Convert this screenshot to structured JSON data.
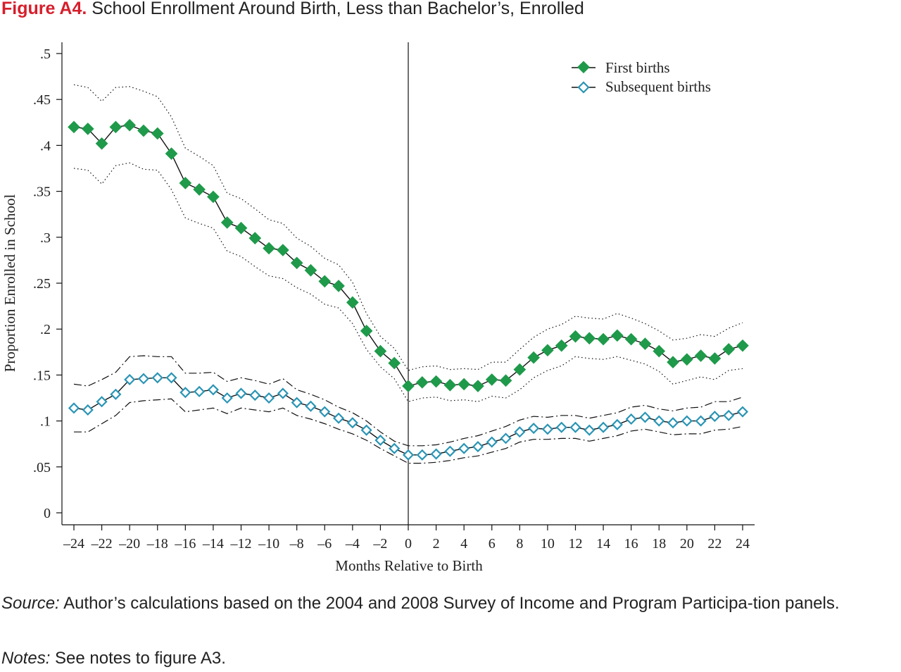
{
  "figure": {
    "label": "Figure A4.",
    "title": "School Enrollment Around Birth, Less than Bachelor’s, Enrolled"
  },
  "captions": {
    "source_lead": "Source:",
    "source_text": "Author’s calculations based on the 2004 and 2008 Survey of Income and Program Participa-tion panels.",
    "notes_lead": "Notes:",
    "notes_text": "See notes to figure A3."
  },
  "colors": {
    "first_births": "#1e9a4a",
    "subsequent_births": "#2a95b5",
    "line": "#111111"
  },
  "chart_data": {
    "type": "line",
    "xlabel": "Months Relative to Birth",
    "ylabel": "Proportion Enrolled in School",
    "xlim": [
      -24,
      24
    ],
    "ylim": [
      0,
      0.5
    ],
    "xticks": [
      -24,
      -22,
      -20,
      -18,
      -16,
      -14,
      -12,
      -10,
      -8,
      -6,
      -4,
      -2,
      0,
      2,
      4,
      6,
      8,
      10,
      12,
      14,
      16,
      18,
      20,
      22,
      24
    ],
    "xtick_labels": [
      "–24",
      "–22",
      "–20",
      "–18",
      "–16",
      "–14",
      "–12",
      "–10",
      "–8",
      "–6",
      "–4",
      "–2",
      "0",
      "2",
      "4",
      "6",
      "8",
      "10",
      "12",
      "14",
      "16",
      "18",
      "20",
      "22",
      "24"
    ],
    "yticks": [
      0,
      0.05,
      0.1,
      0.15,
      0.2,
      0.25,
      0.3,
      0.35,
      0.4,
      0.45,
      0.5
    ],
    "ytick_labels": [
      "0",
      ".05",
      ".1",
      ".15",
      ".2",
      ".25",
      ".3",
      ".35",
      ".4",
      ".45",
      ".5"
    ],
    "vline_x": 0,
    "grid": false,
    "legend_position": "top-right",
    "x": [
      -24,
      -23,
      -22,
      -21,
      -20,
      -19,
      -18,
      -17,
      -16,
      -15,
      -14,
      -13,
      -12,
      -11,
      -10,
      -9,
      -8,
      -7,
      -6,
      -5,
      -4,
      -3,
      -2,
      -1,
      0,
      1,
      2,
      3,
      4,
      5,
      6,
      7,
      8,
      9,
      10,
      11,
      12,
      13,
      14,
      15,
      16,
      17,
      18,
      19,
      20,
      21,
      22,
      23,
      24
    ],
    "series": [
      {
        "name": "First births",
        "marker": "filled-diamond",
        "values": [
          0.42,
          0.418,
          0.402,
          0.42,
          0.422,
          0.416,
          0.413,
          0.391,
          0.359,
          0.352,
          0.344,
          0.316,
          0.31,
          0.299,
          0.288,
          0.286,
          0.272,
          0.264,
          0.252,
          0.247,
          0.229,
          0.198,
          0.176,
          0.163,
          0.138,
          0.142,
          0.143,
          0.139,
          0.14,
          0.138,
          0.145,
          0.144,
          0.156,
          0.169,
          0.177,
          0.182,
          0.192,
          0.19,
          0.189,
          0.193,
          0.189,
          0.184,
          0.176,
          0.164,
          0.167,
          0.171,
          0.168,
          0.178,
          0.182
        ],
        "ci_upper": [
          0.466,
          0.463,
          0.448,
          0.463,
          0.464,
          0.459,
          0.453,
          0.431,
          0.397,
          0.388,
          0.378,
          0.348,
          0.342,
          0.331,
          0.319,
          0.315,
          0.299,
          0.29,
          0.277,
          0.27,
          0.251,
          0.217,
          0.192,
          0.179,
          0.155,
          0.159,
          0.16,
          0.156,
          0.157,
          0.156,
          0.164,
          0.164,
          0.178,
          0.191,
          0.2,
          0.205,
          0.214,
          0.212,
          0.211,
          0.217,
          0.212,
          0.206,
          0.198,
          0.188,
          0.19,
          0.194,
          0.192,
          0.201,
          0.207
        ],
        "ci_lower": [
          0.375,
          0.373,
          0.358,
          0.378,
          0.381,
          0.374,
          0.373,
          0.352,
          0.321,
          0.315,
          0.31,
          0.285,
          0.279,
          0.268,
          0.258,
          0.255,
          0.245,
          0.238,
          0.227,
          0.223,
          0.206,
          0.178,
          0.159,
          0.146,
          0.121,
          0.125,
          0.126,
          0.122,
          0.123,
          0.121,
          0.127,
          0.125,
          0.134,
          0.147,
          0.155,
          0.16,
          0.17,
          0.168,
          0.167,
          0.17,
          0.166,
          0.162,
          0.154,
          0.14,
          0.144,
          0.148,
          0.145,
          0.155,
          0.157
        ]
      },
      {
        "name": "Subsequent births",
        "marker": "hollow-diamond",
        "values": [
          0.114,
          0.112,
          0.121,
          0.129,
          0.145,
          0.146,
          0.147,
          0.147,
          0.131,
          0.132,
          0.134,
          0.125,
          0.13,
          0.128,
          0.125,
          0.13,
          0.12,
          0.116,
          0.11,
          0.103,
          0.098,
          0.09,
          0.079,
          0.07,
          0.063,
          0.063,
          0.064,
          0.067,
          0.07,
          0.072,
          0.077,
          0.081,
          0.088,
          0.092,
          0.091,
          0.093,
          0.093,
          0.09,
          0.093,
          0.096,
          0.102,
          0.104,
          0.1,
          0.098,
          0.1,
          0.1,
          0.105,
          0.106,
          0.11
        ],
        "ci_upper": [
          0.14,
          0.138,
          0.145,
          0.153,
          0.17,
          0.171,
          0.17,
          0.17,
          0.152,
          0.152,
          0.153,
          0.143,
          0.147,
          0.144,
          0.14,
          0.146,
          0.134,
          0.129,
          0.123,
          0.115,
          0.109,
          0.1,
          0.088,
          0.078,
          0.073,
          0.073,
          0.074,
          0.077,
          0.081,
          0.084,
          0.089,
          0.094,
          0.101,
          0.105,
          0.104,
          0.106,
          0.106,
          0.103,
          0.106,
          0.109,
          0.115,
          0.117,
          0.113,
          0.111,
          0.114,
          0.115,
          0.121,
          0.121,
          0.126
        ],
        "ci_lower": [
          0.088,
          0.088,
          0.097,
          0.106,
          0.12,
          0.122,
          0.123,
          0.124,
          0.11,
          0.112,
          0.114,
          0.108,
          0.114,
          0.112,
          0.11,
          0.114,
          0.106,
          0.102,
          0.097,
          0.091,
          0.086,
          0.079,
          0.07,
          0.062,
          0.054,
          0.054,
          0.055,
          0.057,
          0.06,
          0.062,
          0.066,
          0.07,
          0.077,
          0.08,
          0.08,
          0.081,
          0.081,
          0.078,
          0.081,
          0.084,
          0.089,
          0.091,
          0.088,
          0.085,
          0.086,
          0.086,
          0.09,
          0.091,
          0.094
        ]
      }
    ]
  }
}
